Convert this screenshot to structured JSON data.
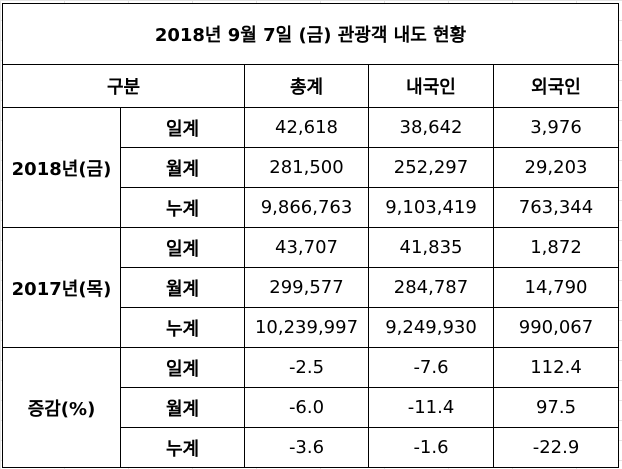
{
  "table": {
    "title": "2018년 9월 7일 (금) 관광객 내도 현황",
    "header": [
      "구분",
      "총계",
      "내국인",
      "외국인"
    ],
    "groups": [
      {
        "label": "2018년(금)",
        "rows": [
          {
            "label": "일계",
            "values": [
              "42,618",
              "38,642",
              "3,976"
            ]
          },
          {
            "label": "월계",
            "values": [
              "281,500",
              "252,297",
              "29,203"
            ]
          },
          {
            "label": "누계",
            "values": [
              "9,866,763",
              "9,103,419",
              "763,344"
            ]
          }
        ]
      },
      {
        "label": "2017년(목)",
        "rows": [
          {
            "label": "일계",
            "values": [
              "43,707",
              "41,835",
              "1,872"
            ]
          },
          {
            "label": "월계",
            "values": [
              "299,577",
              "284,787",
              "14,790"
            ]
          },
          {
            "label": "누계",
            "values": [
              "10,239,997",
              "9,249,930",
              "990,067"
            ]
          }
        ]
      },
      {
        "label": "증감(%)",
        "rows": [
          {
            "label": "일계",
            "values": [
              "-2.5",
              "-7.6",
              "112.4"
            ]
          },
          {
            "label": "월계",
            "values": [
              "-6.0",
              "-11.4",
              "97.5"
            ]
          },
          {
            "label": "누계",
            "values": [
              "-3.6",
              "-1.6",
              "-22.9"
            ]
          }
        ]
      }
    ]
  }
}
